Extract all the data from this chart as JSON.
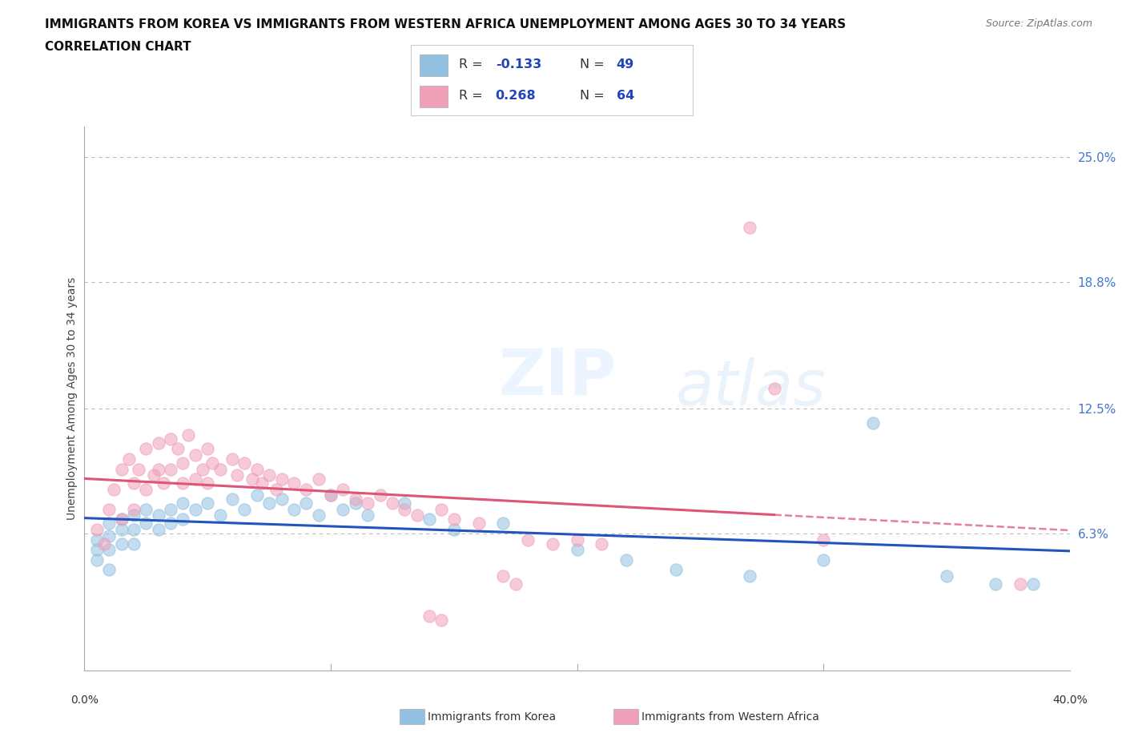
{
  "title_line1": "IMMIGRANTS FROM KOREA VS IMMIGRANTS FROM WESTERN AFRICA UNEMPLOYMENT AMONG AGES 30 TO 34 YEARS",
  "title_line2": "CORRELATION CHART",
  "source": "Source: ZipAtlas.com",
  "ylabel": "Unemployment Among Ages 30 to 34 years",
  "xlim": [
    0.0,
    0.4
  ],
  "ylim": [
    -0.005,
    0.265
  ],
  "ytick_vals": [
    0.063,
    0.125,
    0.188,
    0.25
  ],
  "ytick_labels": [
    "6.3%",
    "12.5%",
    "18.8%",
    "25.0%"
  ],
  "korea_R": -0.133,
  "korea_N": 49,
  "africa_R": 0.268,
  "africa_N": 64,
  "korea_color": "#92c0e0",
  "africa_color": "#f0a0b8",
  "korea_line_color": "#2255bb",
  "africa_line_color": "#dd5577",
  "korea_scatter": [
    [
      0.005,
      0.06
    ],
    [
      0.005,
      0.055
    ],
    [
      0.005,
      0.05
    ],
    [
      0.01,
      0.068
    ],
    [
      0.01,
      0.062
    ],
    [
      0.01,
      0.055
    ],
    [
      0.01,
      0.045
    ],
    [
      0.015,
      0.07
    ],
    [
      0.015,
      0.065
    ],
    [
      0.015,
      0.058
    ],
    [
      0.02,
      0.072
    ],
    [
      0.02,
      0.065
    ],
    [
      0.02,
      0.058
    ],
    [
      0.025,
      0.075
    ],
    [
      0.025,
      0.068
    ],
    [
      0.03,
      0.072
    ],
    [
      0.03,
      0.065
    ],
    [
      0.035,
      0.075
    ],
    [
      0.035,
      0.068
    ],
    [
      0.04,
      0.078
    ],
    [
      0.04,
      0.07
    ],
    [
      0.045,
      0.075
    ],
    [
      0.05,
      0.078
    ],
    [
      0.055,
      0.072
    ],
    [
      0.06,
      0.08
    ],
    [
      0.065,
      0.075
    ],
    [
      0.07,
      0.082
    ],
    [
      0.075,
      0.078
    ],
    [
      0.08,
      0.08
    ],
    [
      0.085,
      0.075
    ],
    [
      0.09,
      0.078
    ],
    [
      0.095,
      0.072
    ],
    [
      0.1,
      0.082
    ],
    [
      0.105,
      0.075
    ],
    [
      0.11,
      0.078
    ],
    [
      0.115,
      0.072
    ],
    [
      0.13,
      0.078
    ],
    [
      0.14,
      0.07
    ],
    [
      0.15,
      0.065
    ],
    [
      0.17,
      0.068
    ],
    [
      0.2,
      0.055
    ],
    [
      0.22,
      0.05
    ],
    [
      0.24,
      0.045
    ],
    [
      0.27,
      0.042
    ],
    [
      0.3,
      0.05
    ],
    [
      0.32,
      0.118
    ],
    [
      0.35,
      0.042
    ],
    [
      0.37,
      0.038
    ],
    [
      0.385,
      0.038
    ]
  ],
  "africa_scatter": [
    [
      0.005,
      0.065
    ],
    [
      0.008,
      0.058
    ],
    [
      0.01,
      0.075
    ],
    [
      0.012,
      0.085
    ],
    [
      0.015,
      0.095
    ],
    [
      0.015,
      0.07
    ],
    [
      0.018,
      0.1
    ],
    [
      0.02,
      0.088
    ],
    [
      0.02,
      0.075
    ],
    [
      0.022,
      0.095
    ],
    [
      0.025,
      0.105
    ],
    [
      0.025,
      0.085
    ],
    [
      0.028,
      0.092
    ],
    [
      0.03,
      0.108
    ],
    [
      0.03,
      0.095
    ],
    [
      0.032,
      0.088
    ],
    [
      0.035,
      0.11
    ],
    [
      0.035,
      0.095
    ],
    [
      0.038,
      0.105
    ],
    [
      0.04,
      0.098
    ],
    [
      0.04,
      0.088
    ],
    [
      0.042,
      0.112
    ],
    [
      0.045,
      0.102
    ],
    [
      0.045,
      0.09
    ],
    [
      0.048,
      0.095
    ],
    [
      0.05,
      0.105
    ],
    [
      0.05,
      0.088
    ],
    [
      0.052,
      0.098
    ],
    [
      0.055,
      0.095
    ],
    [
      0.06,
      0.1
    ],
    [
      0.062,
      0.092
    ],
    [
      0.065,
      0.098
    ],
    [
      0.068,
      0.09
    ],
    [
      0.07,
      0.095
    ],
    [
      0.072,
      0.088
    ],
    [
      0.075,
      0.092
    ],
    [
      0.078,
      0.085
    ],
    [
      0.08,
      0.09
    ],
    [
      0.085,
      0.088
    ],
    [
      0.09,
      0.085
    ],
    [
      0.095,
      0.09
    ],
    [
      0.1,
      0.082
    ],
    [
      0.105,
      0.085
    ],
    [
      0.11,
      0.08
    ],
    [
      0.115,
      0.078
    ],
    [
      0.12,
      0.082
    ],
    [
      0.125,
      0.078
    ],
    [
      0.13,
      0.075
    ],
    [
      0.135,
      0.072
    ],
    [
      0.14,
      0.022
    ],
    [
      0.145,
      0.075
    ],
    [
      0.15,
      0.07
    ],
    [
      0.16,
      0.068
    ],
    [
      0.17,
      0.042
    ],
    [
      0.175,
      0.038
    ],
    [
      0.18,
      0.06
    ],
    [
      0.19,
      0.058
    ],
    [
      0.2,
      0.06
    ],
    [
      0.21,
      0.058
    ],
    [
      0.27,
      0.215
    ],
    [
      0.28,
      0.135
    ],
    [
      0.3,
      0.06
    ],
    [
      0.145,
      0.02
    ],
    [
      0.38,
      0.038
    ]
  ],
  "background_color": "#ffffff",
  "grid_color": "#cccccc",
  "grid_style": "dotted"
}
